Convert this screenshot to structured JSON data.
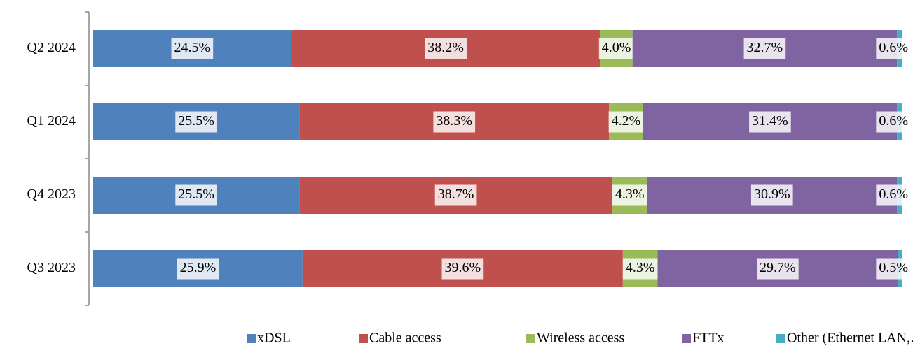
{
  "chart_data": {
    "type": "stacked-barh",
    "categories": [
      "Q2 2024",
      "Q1 2024",
      "Q4 2023",
      "Q3 2023"
    ],
    "xlim": [
      0,
      100
    ],
    "legend": "bottom",
    "series": [
      {
        "name": "xDSL",
        "color": "#4f81bd",
        "values": [
          24.5,
          25.5,
          25.5,
          25.9
        ],
        "value_labels": [
          "24.5%",
          "25.5%",
          "25.5%",
          "25.9%"
        ]
      },
      {
        "name": "Cable access",
        "color": "#c0504d",
        "values": [
          38.2,
          38.3,
          38.7,
          39.6
        ],
        "value_labels": [
          "38.2%",
          "38.3%",
          "38.7%",
          "39.6%"
        ]
      },
      {
        "name": "Wireless access",
        "color": "#9bbb59",
        "values": [
          4.0,
          4.2,
          4.3,
          4.3
        ],
        "value_labels": [
          "4.0%",
          "4.2%",
          "4.3%",
          "4.3%"
        ]
      },
      {
        "name": "FTTx",
        "color": "#8064a2",
        "values": [
          32.7,
          31.4,
          30.9,
          29.7
        ],
        "value_labels": [
          "32.7%",
          "31.4%",
          "30.9%",
          "29.7%"
        ]
      },
      {
        "name": "Other (Ethernet LAN,…)",
        "color": "#4bacc6",
        "values": [
          0.6,
          0.6,
          0.6,
          0.5
        ],
        "value_labels": [
          "0.6%",
          "0.6%",
          "0.6%",
          "0.5%"
        ]
      }
    ]
  }
}
